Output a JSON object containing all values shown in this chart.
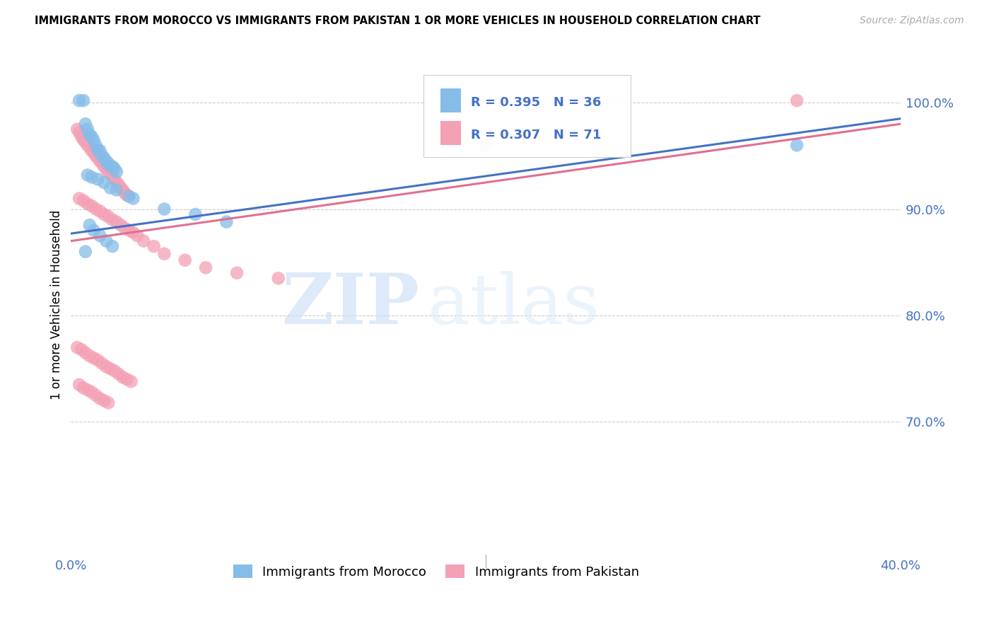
{
  "title": "IMMIGRANTS FROM MOROCCO VS IMMIGRANTS FROM PAKISTAN 1 OR MORE VEHICLES IN HOUSEHOLD CORRELATION CHART",
  "source": "Source: ZipAtlas.com",
  "ylabel": "1 or more Vehicles in Household",
  "legend1_label": "Immigrants from Morocco",
  "legend2_label": "Immigrants from Pakistan",
  "R_morocco": 0.395,
  "N_morocco": 36,
  "R_pakistan": 0.307,
  "N_pakistan": 71,
  "morocco_color": "#85bce8",
  "pakistan_color": "#f4a0b5",
  "morocco_line_color": "#4472c4",
  "pakistan_line_color": "#e07090",
  "watermark_zip": "ZIP",
  "watermark_atlas": "atlas",
  "xlim": [
    0.0,
    0.4
  ],
  "ylim": [
    0.575,
    1.045
  ],
  "ytick_values": [
    1.0,
    0.9,
    0.8,
    0.7
  ],
  "ytick_labels": [
    "100.0%",
    "90.0%",
    "80.0%",
    "70.0%"
  ],
  "xtick_values": [
    0.0,
    0.08,
    0.16,
    0.24,
    0.32,
    0.4
  ],
  "xtick_labels_left": "0.0%",
  "xtick_labels_right": "40.0%",
  "morocco_x": [
    0.004,
    0.006,
    0.007,
    0.008,
    0.009,
    0.01,
    0.011,
    0.012,
    0.013,
    0.014,
    0.015,
    0.016,
    0.017,
    0.018,
    0.019,
    0.02,
    0.021,
    0.022,
    0.008,
    0.01,
    0.013,
    0.016,
    0.019,
    0.022,
    0.028,
    0.03,
    0.045,
    0.06,
    0.075,
    0.009,
    0.011,
    0.014,
    0.017,
    0.02,
    0.007,
    0.35
  ],
  "morocco_y": [
    1.002,
    1.002,
    0.98,
    0.975,
    0.97,
    0.968,
    0.965,
    0.96,
    0.955,
    0.955,
    0.95,
    0.948,
    0.945,
    0.943,
    0.94,
    0.94,
    0.938,
    0.935,
    0.932,
    0.93,
    0.928,
    0.925,
    0.92,
    0.918,
    0.912,
    0.91,
    0.9,
    0.895,
    0.888,
    0.885,
    0.88,
    0.875,
    0.87,
    0.865,
    0.86,
    0.96
  ],
  "pakistan_x": [
    0.003,
    0.004,
    0.005,
    0.006,
    0.007,
    0.008,
    0.009,
    0.01,
    0.011,
    0.012,
    0.013,
    0.014,
    0.015,
    0.016,
    0.017,
    0.018,
    0.019,
    0.02,
    0.021,
    0.022,
    0.023,
    0.024,
    0.025,
    0.026,
    0.027,
    0.004,
    0.006,
    0.008,
    0.01,
    0.012,
    0.014,
    0.016,
    0.018,
    0.02,
    0.022,
    0.024,
    0.026,
    0.028,
    0.03,
    0.032,
    0.035,
    0.04,
    0.045,
    0.055,
    0.065,
    0.08,
    0.1,
    0.2,
    0.35,
    0.003,
    0.005,
    0.007,
    0.009,
    0.011,
    0.013,
    0.015,
    0.017,
    0.019,
    0.021,
    0.023,
    0.025,
    0.027,
    0.029,
    0.004,
    0.006,
    0.008,
    0.01,
    0.012,
    0.014,
    0.016,
    0.018
  ],
  "pakistan_y": [
    0.975,
    0.972,
    0.968,
    0.965,
    0.963,
    0.96,
    0.958,
    0.955,
    0.953,
    0.95,
    0.948,
    0.945,
    0.943,
    0.94,
    0.938,
    0.935,
    0.933,
    0.93,
    0.928,
    0.925,
    0.923,
    0.92,
    0.918,
    0.915,
    0.913,
    0.91,
    0.908,
    0.905,
    0.903,
    0.9,
    0.898,
    0.895,
    0.893,
    0.89,
    0.888,
    0.885,
    0.882,
    0.88,
    0.878,
    0.875,
    0.87,
    0.865,
    0.858,
    0.852,
    0.845,
    0.84,
    0.835,
    0.96,
    1.002,
    0.77,
    0.768,
    0.765,
    0.762,
    0.76,
    0.758,
    0.755,
    0.752,
    0.75,
    0.748,
    0.745,
    0.742,
    0.74,
    0.738,
    0.735,
    0.732,
    0.73,
    0.728,
    0.725,
    0.722,
    0.72,
    0.718
  ],
  "morocco_line_x": [
    0.0,
    0.4
  ],
  "morocco_line_y": [
    0.877,
    0.985
  ],
  "pakistan_line_x": [
    0.0,
    0.4
  ],
  "pakistan_line_y": [
    0.87,
    0.98
  ]
}
